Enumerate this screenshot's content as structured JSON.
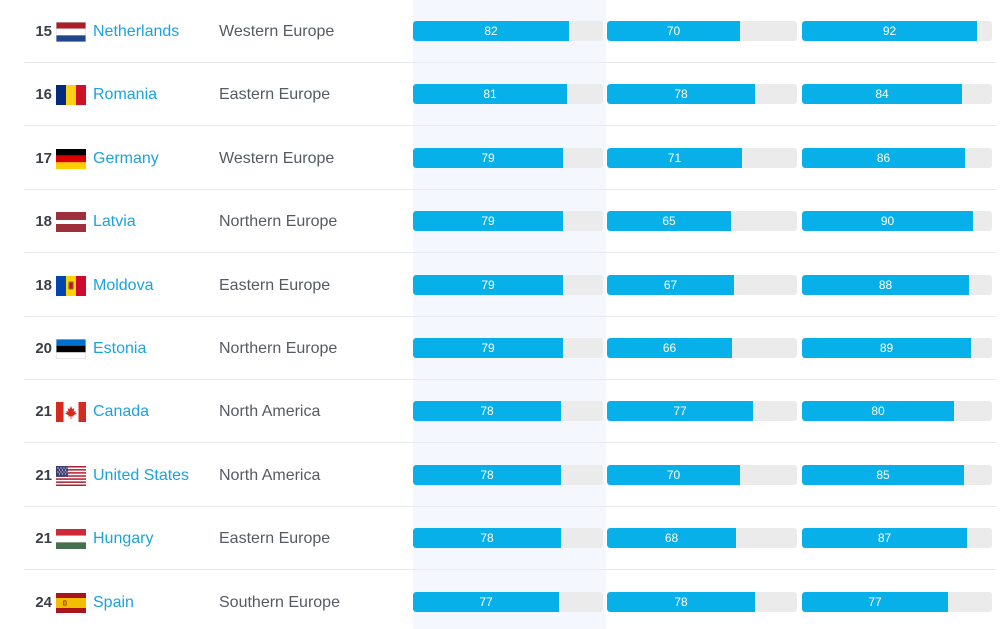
{
  "rows": [
    {
      "rank": "15",
      "country": "Netherlands",
      "flag": "netherlands-flag-icon",
      "region": "Western Europe",
      "scores": [
        82,
        70,
        92
      ]
    },
    {
      "rank": "16",
      "country": "Romania",
      "flag": "romania-flag-icon",
      "region": "Eastern Europe",
      "scores": [
        81,
        78,
        84
      ]
    },
    {
      "rank": "17",
      "country": "Germany",
      "flag": "germany-flag-icon",
      "region": "Western Europe",
      "scores": [
        79,
        71,
        86
      ]
    },
    {
      "rank": "18",
      "country": "Latvia",
      "flag": "latvia-flag-icon",
      "region": "Northern Europe",
      "scores": [
        79,
        65,
        90
      ]
    },
    {
      "rank": "18",
      "country": "Moldova",
      "flag": "moldova-flag-icon",
      "region": "Eastern Europe",
      "scores": [
        79,
        67,
        88
      ]
    },
    {
      "rank": "20",
      "country": "Estonia",
      "flag": "estonia-flag-icon",
      "region": "Northern Europe",
      "scores": [
        79,
        66,
        89
      ]
    },
    {
      "rank": "21",
      "country": "Canada",
      "flag": "canada-flag-icon",
      "region": "North America",
      "scores": [
        78,
        77,
        80
      ]
    },
    {
      "rank": "21",
      "country": "United States",
      "flag": "united-states-flag-icon",
      "region": "North America",
      "scores": [
        78,
        70,
        85
      ]
    },
    {
      "rank": "21",
      "country": "Hungary",
      "flag": "hungary-flag-icon",
      "region": "Eastern Europe",
      "scores": [
        78,
        68,
        87
      ]
    },
    {
      "rank": "24",
      "country": "Spain",
      "flag": "spain-flag-icon",
      "region": "Southern Europe",
      "scores": [
        77,
        78,
        77
      ]
    }
  ],
  "colors": {
    "bar_fill": "#08b0e9",
    "bar_track": "#ebebeb",
    "country_link": "#1aa3dd",
    "highlight_column": "#f4f7fd"
  }
}
